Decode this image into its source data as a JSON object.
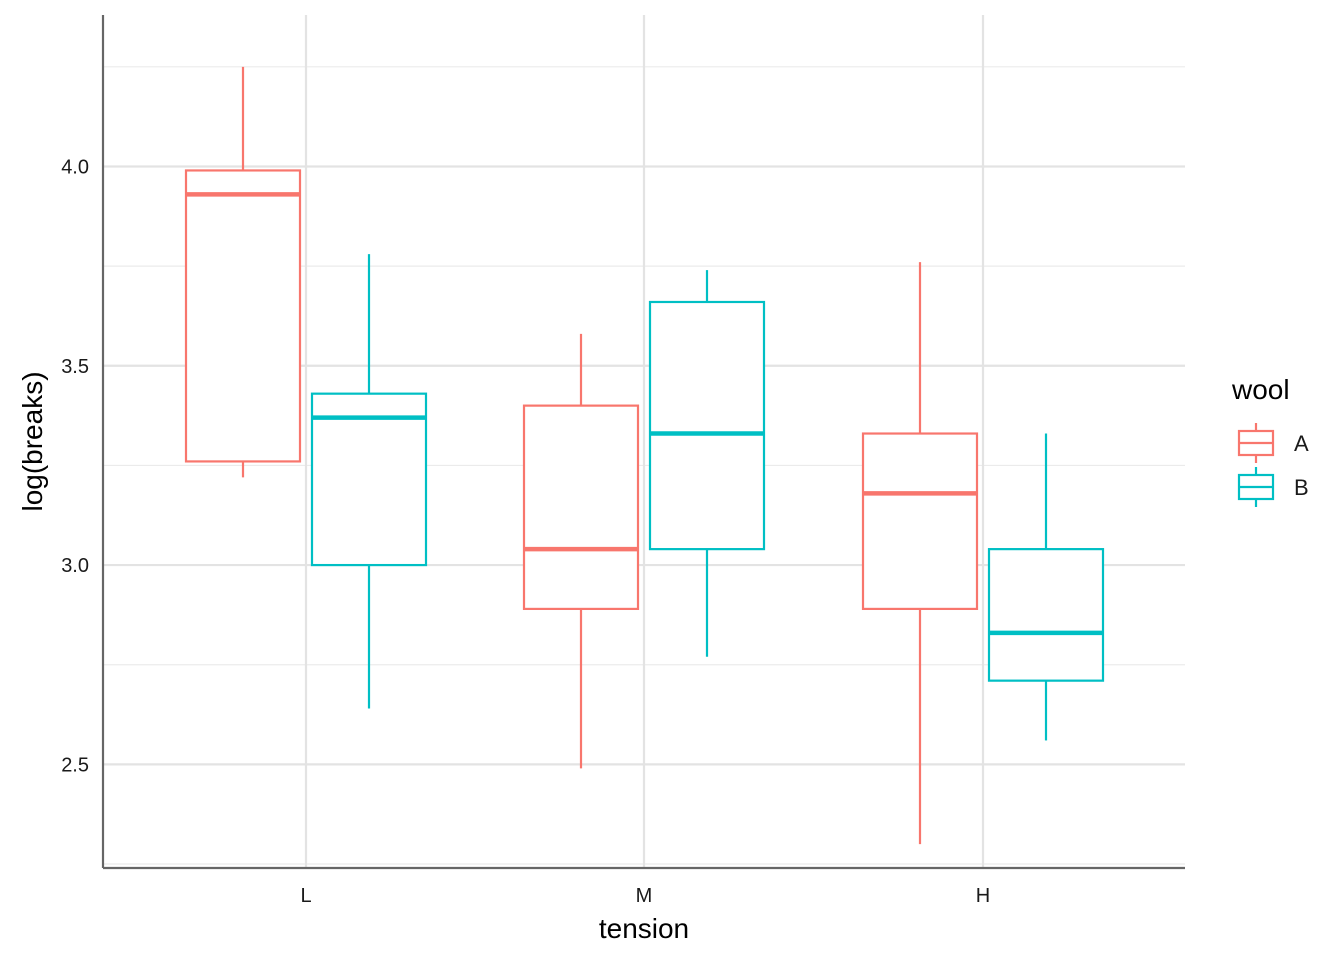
{
  "chart_data": {
    "type": "boxplot",
    "xlabel": "tension",
    "ylabel": "log(breaks)",
    "categories": [
      "L",
      "M",
      "H"
    ],
    "ylim": [
      2.24,
      4.38
    ],
    "y_ticks": [
      2.5,
      3.0,
      3.5,
      4.0
    ],
    "y_tick_labels": [
      "2.5",
      "3.0",
      "3.5",
      "4.0"
    ],
    "grid": true,
    "legend": {
      "title": "wool",
      "position": "right",
      "entries": [
        "A",
        "B"
      ]
    },
    "series": [
      {
        "name": "A",
        "color": "#F8766D",
        "boxes": [
          {
            "category": "L",
            "min": 3.22,
            "q1": 3.26,
            "median": 3.93,
            "q3": 3.99,
            "max": 4.25
          },
          {
            "category": "M",
            "min": 2.49,
            "q1": 2.89,
            "median": 3.04,
            "q3": 3.4,
            "max": 3.58
          },
          {
            "category": "H",
            "min": 2.3,
            "q1": 2.89,
            "median": 3.18,
            "q3": 3.33,
            "max": 3.76
          }
        ]
      },
      {
        "name": "B",
        "color": "#00BFC4",
        "boxes": [
          {
            "category": "L",
            "min": 2.64,
            "q1": 3.0,
            "median": 3.37,
            "q3": 3.43,
            "max": 3.78
          },
          {
            "category": "M",
            "min": 2.77,
            "q1": 3.04,
            "median": 3.33,
            "q3": 3.66,
            "max": 3.74
          },
          {
            "category": "H",
            "min": 2.56,
            "q1": 2.71,
            "median": 2.83,
            "q3": 3.04,
            "max": 3.33
          }
        ]
      }
    ]
  }
}
